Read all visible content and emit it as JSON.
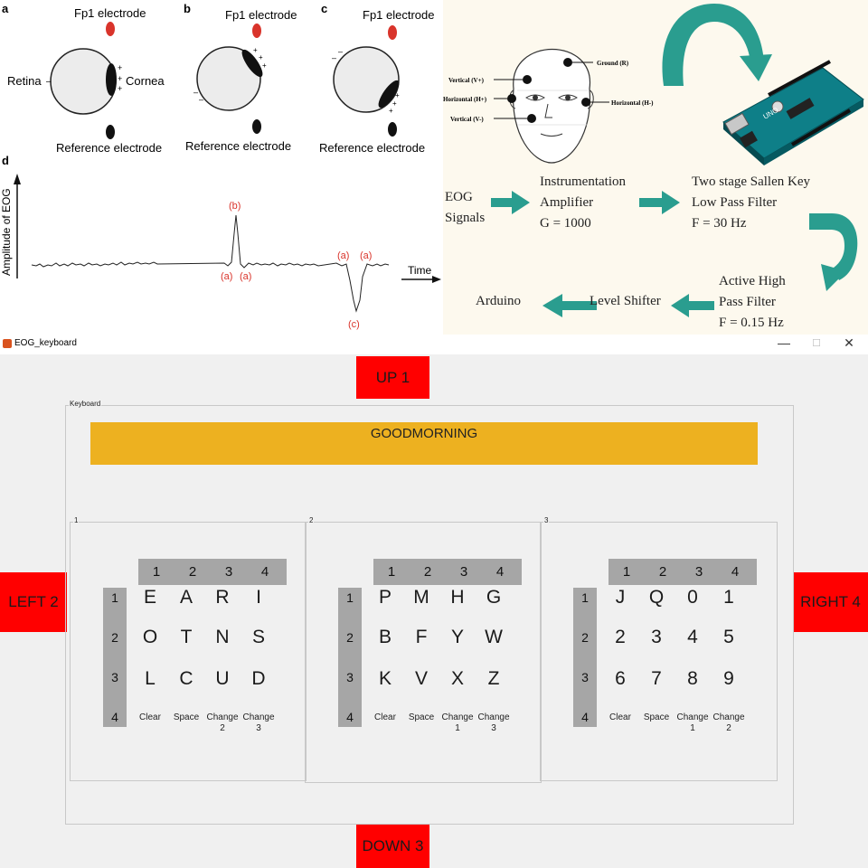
{
  "eog_figure": {
    "panel_labels": [
      "a",
      "b",
      "c",
      "d"
    ],
    "fp1_label": "Fp1 electrode",
    "reference_label": "Reference electrode",
    "retina_label": "Retina",
    "cornea_label": "Cornea",
    "y_axis_label": "Amplitude of EOG",
    "x_axis_label": "Time",
    "peak_labels": {
      "b": "(b)",
      "a": "(a)",
      "c": "(c)"
    }
  },
  "electrode_diagram": {
    "labels": {
      "ground": "Ground (R)",
      "vertical_plus": "Vertical (V+)",
      "horizontal_plus": "Horizontal (H+)",
      "horizontal_minus": "Horizontal (H-)",
      "vertical_minus": "Vertical (V-)"
    }
  },
  "block_diagram": {
    "eog_signals": [
      "EOG",
      "Signals"
    ],
    "instrumentation": [
      "Instrumentation",
      "Amplifier",
      "G = 1000"
    ],
    "sallen_key": [
      "Two stage Sallen Key",
      "Low Pass Filter",
      "F = 30 Hz"
    ],
    "high_pass": [
      "Active High",
      "Pass Filter",
      "F = 0.15 Hz"
    ],
    "level_shifter": "Level Shifter",
    "arduino": "Arduino",
    "arrow_color": "#2a9d8f"
  },
  "window": {
    "title": "EOG_keyboard",
    "minimize": "—",
    "maximize": "☐",
    "close": "✕"
  },
  "direction_buttons": {
    "up": "UP 1",
    "down": "DOWN 3",
    "left": "LEFT 2",
    "right": "RIGHT 4",
    "color": "#ff0000"
  },
  "keyboard": {
    "group_label": "Keyboard",
    "display_text": "GOODMORNING",
    "display_color": "#edb120",
    "panels": [
      {
        "label": "1",
        "col_headers": [
          "1",
          "2",
          "3",
          "4"
        ],
        "row_headers": [
          "1",
          "2",
          "3",
          "4"
        ],
        "rows": [
          [
            "E",
            "A",
            "R",
            "I"
          ],
          [
            "O",
            "T",
            "N",
            "S"
          ],
          [
            "L",
            "C",
            "U",
            "D"
          ]
        ],
        "command_row": [
          "Clear",
          "Space",
          "Change\n2",
          "Change\n3"
        ]
      },
      {
        "label": "2",
        "col_headers": [
          "1",
          "2",
          "3",
          "4"
        ],
        "row_headers": [
          "1",
          "2",
          "3",
          "4"
        ],
        "rows": [
          [
            "P",
            "M",
            "H",
            "G"
          ],
          [
            "B",
            "F",
            "Y",
            "W"
          ],
          [
            "K",
            "V",
            "X",
            "Z"
          ]
        ],
        "command_row": [
          "Clear",
          "Space",
          "Change\n1",
          "Change\n3"
        ]
      },
      {
        "label": "3",
        "col_headers": [
          "1",
          "2",
          "3",
          "4"
        ],
        "row_headers": [
          "1",
          "2",
          "3",
          "4"
        ],
        "rows": [
          [
            "J",
            "Q",
            "0",
            "1"
          ],
          [
            "2",
            "3",
            "4",
            "5"
          ],
          [
            "6",
            "7",
            "8",
            "9"
          ]
        ],
        "command_row": [
          "Clear",
          "Space",
          "Change\n1",
          "Change\n2"
        ]
      }
    ]
  }
}
